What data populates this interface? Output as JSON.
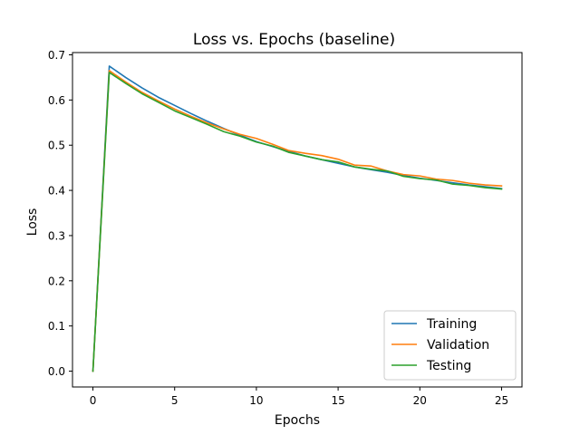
{
  "chart_data": {
    "type": "line",
    "title": "Loss vs. Epochs (baseline)",
    "xlabel": "Epochs",
    "ylabel": "Loss",
    "xlim": [
      -1.25,
      26.25
    ],
    "ylim": [
      -0.035,
      0.705
    ],
    "xticks": [
      0,
      5,
      10,
      15,
      20,
      25
    ],
    "yticks": [
      0.0,
      0.1,
      0.2,
      0.3,
      0.4,
      0.5,
      0.6,
      0.7
    ],
    "grid": false,
    "legend_position": "lower-right",
    "x": [
      0,
      1,
      2,
      3,
      4,
      5,
      6,
      7,
      8,
      9,
      10,
      11,
      12,
      13,
      14,
      15,
      16,
      17,
      18,
      19,
      20,
      21,
      22,
      23,
      24,
      25
    ],
    "series": [
      {
        "name": "Training",
        "color": "#1f77b4",
        "values": [
          0.0,
          0.675,
          0.65,
          0.627,
          0.606,
          0.588,
          0.57,
          0.553,
          0.537,
          0.522,
          0.508,
          0.497,
          0.486,
          0.476,
          0.468,
          0.46,
          0.452,
          0.446,
          0.44,
          0.433,
          0.427,
          0.422,
          0.417,
          0.412,
          0.408,
          0.404
        ]
      },
      {
        "name": "Validation",
        "color": "#ff7f0e",
        "values": [
          0.0,
          0.665,
          0.64,
          0.617,
          0.598,
          0.58,
          0.564,
          0.549,
          0.536,
          0.524,
          0.515,
          0.502,
          0.488,
          0.482,
          0.477,
          0.469,
          0.456,
          0.454,
          0.443,
          0.435,
          0.432,
          0.425,
          0.422,
          0.416,
          0.412,
          0.41
        ]
      },
      {
        "name": "Testing",
        "color": "#2ca02c",
        "values": [
          0.0,
          0.661,
          0.637,
          0.614,
          0.595,
          0.576,
          0.561,
          0.546,
          0.53,
          0.52,
          0.507,
          0.498,
          0.484,
          0.476,
          0.468,
          0.463,
          0.452,
          0.447,
          0.443,
          0.431,
          0.426,
          0.423,
          0.414,
          0.411,
          0.406,
          0.403
        ]
      }
    ]
  }
}
